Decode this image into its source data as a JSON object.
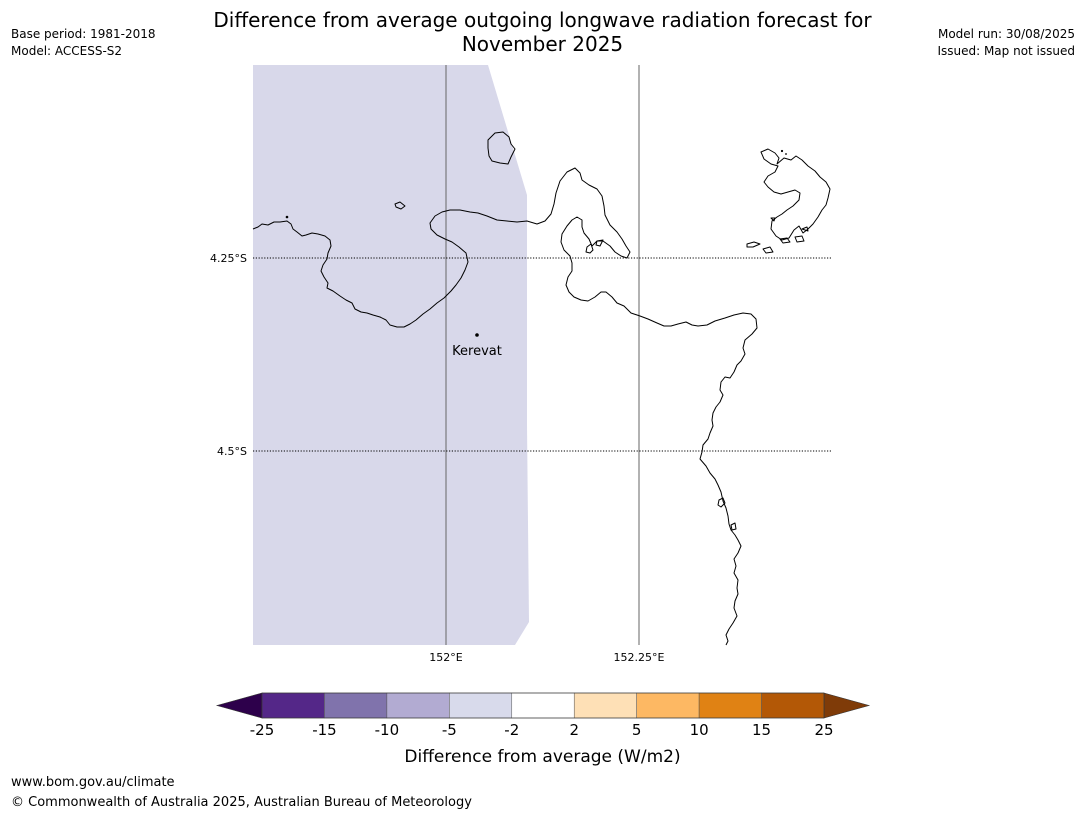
{
  "title": {
    "line1": "Difference from average outgoing longwave radiation forecast for",
    "line2": "November 2025"
  },
  "meta_left": {
    "base_period": "Base period: 1981-2018",
    "model": "Model: ACCESS-S2"
  },
  "meta_right": {
    "model_run": "Model run: 30/08/2025",
    "issued": "Issued: Map not issued"
  },
  "map": {
    "lat_labels": [
      "4.25°S",
      "4.5°S"
    ],
    "lon_labels": [
      "152°E",
      "152.25°E"
    ],
    "place": "Kerevat",
    "anomaly_fill": "#d8d8ea",
    "anomaly_class": "-5 to -2"
  },
  "colorbar": {
    "label": "Difference from average (W/m2)",
    "ticks": [
      "-25",
      "-15",
      "-10",
      "-5",
      "-2",
      "2",
      "5",
      "10",
      "15",
      "25"
    ],
    "extend_low_color": "#2d004b",
    "extend_high_color": "#7f3b08",
    "colors": [
      "#542788",
      "#8073ac",
      "#b2abd2",
      "#d8daeb",
      "#ffffff",
      "#fee0b6",
      "#fdb863",
      "#e08214",
      "#b35806"
    ]
  },
  "footer": {
    "url": "www.bom.gov.au/climate",
    "copyright": "© Commonwealth of Australia 2025, Australian Bureau of Meteorology"
  }
}
